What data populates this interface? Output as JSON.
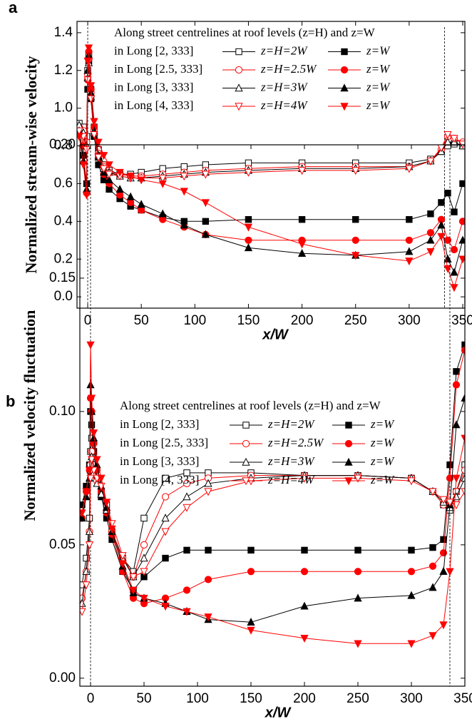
{
  "chart_data": [
    {
      "type": "line",
      "label": "a",
      "y_label": "Normalized stream-wise velocity",
      "x_label": "x/W",
      "legend_title": "Along street centrelines at roof levels (z=H) and z=W",
      "legend_groups": [
        "in Long [2, 333]",
        "in Long [2.5, 333]",
        "in Long [3, 333]",
        "in Long [4, 333]"
      ],
      "xlim": [
        -10,
        352
      ],
      "xticks": [
        0,
        50,
        100,
        150,
        200,
        250,
        300,
        350
      ],
      "ylim": [
        -0.06,
        1.46
      ],
      "yticks": [
        {
          "value": 0,
          "label": "0.0"
        },
        {
          "value": 0.2,
          "label": "0.2"
        },
        {
          "value": 0.4,
          "label": "0.4"
        },
        {
          "value": 0.6,
          "label": "0.6"
        },
        {
          "value": 0.8,
          "label": "0.8"
        },
        {
          "value": 1.0,
          "label": "1.0"
        },
        {
          "value": 1.2,
          "label": "1.2"
        },
        {
          "value": 1.4,
          "label": "1.4"
        }
      ],
      "reference_lines_x": [
        0,
        333
      ],
      "x": [
        -8,
        -4,
        -1,
        0,
        1,
        3,
        6,
        10,
        15,
        20,
        30,
        40,
        50,
        70,
        90,
        110,
        150,
        200,
        250,
        300,
        320,
        330,
        336,
        342,
        350
      ],
      "series": [
        {
          "name": "z=H=2W",
          "color": "#000000",
          "marker": "square",
          "filled": false,
          "values": [
            0.92,
            0.9,
            0.85,
            1.2,
            1.28,
            1.1,
            0.9,
            0.78,
            0.7,
            0.67,
            0.65,
            0.65,
            0.66,
            0.68,
            0.69,
            0.7,
            0.71,
            0.71,
            0.71,
            0.71,
            0.73,
            0.77,
            0.8,
            0.81,
            0.8
          ]
        },
        {
          "name": "z=W",
          "color": "#000000",
          "marker": "square",
          "filled": true,
          "values": [
            0.88,
            0.75,
            0.6,
            1.1,
            1.25,
            1.05,
            0.85,
            0.7,
            0.62,
            0.57,
            0.52,
            0.48,
            0.46,
            0.42,
            0.4,
            0.4,
            0.41,
            0.41,
            0.41,
            0.41,
            0.44,
            0.5,
            0.55,
            0.45,
            0.6
          ]
        },
        {
          "name": "z=H=2.5W",
          "color": "#ff0000",
          "marker": "circle",
          "filled": false,
          "values": [
            0.9,
            0.88,
            0.82,
            1.18,
            1.26,
            1.08,
            0.88,
            0.76,
            0.69,
            0.66,
            0.65,
            0.64,
            0.64,
            0.65,
            0.66,
            0.67,
            0.68,
            0.69,
            0.69,
            0.69,
            0.72,
            0.78,
            0.85,
            0.84,
            0.82
          ]
        },
        {
          "name": "z=W",
          "color": "#ff0000",
          "marker": "circle",
          "filled": true,
          "values": [
            0.9,
            0.8,
            0.55,
            1.15,
            1.3,
            1.1,
            0.9,
            0.75,
            0.65,
            0.6,
            0.54,
            0.5,
            0.46,
            0.41,
            0.37,
            0.33,
            0.3,
            0.3,
            0.3,
            0.3,
            0.34,
            0.41,
            0.3,
            0.25,
            0.4
          ]
        },
        {
          "name": "z=H=3W",
          "color": "#000000",
          "marker": "triangle",
          "filled": false,
          "values": [
            0.91,
            0.87,
            0.8,
            1.16,
            1.24,
            1.06,
            0.87,
            0.75,
            0.68,
            0.66,
            0.64,
            0.63,
            0.63,
            0.64,
            0.65,
            0.66,
            0.67,
            0.68,
            0.68,
            0.69,
            0.72,
            0.77,
            0.82,
            0.82,
            0.8
          ]
        },
        {
          "name": "z=W",
          "color": "#000000",
          "marker": "triangle",
          "filled": true,
          "values": [
            0.88,
            0.72,
            0.57,
            1.2,
            1.28,
            1.08,
            0.88,
            0.74,
            0.66,
            0.62,
            0.57,
            0.53,
            0.49,
            0.44,
            0.38,
            0.33,
            0.26,
            0.23,
            0.22,
            0.24,
            0.3,
            0.38,
            0.2,
            0.13,
            0.3
          ]
        },
        {
          "name": "z=H=4W",
          "color": "#ff0000",
          "marker": "triangle-down",
          "filled": false,
          "values": [
            0.88,
            0.85,
            0.78,
            1.15,
            1.25,
            1.05,
            0.86,
            0.74,
            0.68,
            0.65,
            0.64,
            0.63,
            0.63,
            0.63,
            0.64,
            0.65,
            0.66,
            0.67,
            0.67,
            0.68,
            0.72,
            0.79,
            0.86,
            0.84,
            0.81
          ]
        },
        {
          "name": "z=W",
          "color": "#ff0000",
          "marker": "triangle-down",
          "filled": true,
          "values": [
            0.85,
            0.7,
            0.54,
            1.25,
            1.32,
            1.12,
            0.93,
            0.82,
            0.75,
            0.7,
            0.66,
            0.64,
            0.62,
            0.6,
            0.56,
            0.5,
            0.37,
            0.28,
            0.22,
            0.19,
            0.24,
            0.32,
            0.15,
            0.05,
            0.2
          ]
        }
      ]
    },
    {
      "type": "line",
      "label": "b",
      "y_label": "Normalized velocity fluctuation",
      "x_label": "x/W",
      "legend_title": "Along street centrelines at roof levels (z=H) and z=W",
      "legend_groups": [
        "in Long [2, 333]",
        "in Long [2.5, 333]",
        "in Long [3, 333]",
        "in Long [4, 333]"
      ],
      "xlim": [
        -10,
        350
      ],
      "xticks": [
        0,
        50,
        100,
        150,
        200,
        250,
        300,
        350
      ],
      "ylim": [
        -0.003,
        0.2
      ],
      "yticks": [
        {
          "value": 0,
          "label": "0.00"
        },
        {
          "value": 0.05,
          "label": "0.05"
        },
        {
          "value": 0.1,
          "label": "0.10"
        },
        {
          "value": 0.15,
          "label": "0.15"
        },
        {
          "value": 0.2,
          "label": "0.20"
        }
      ],
      "reference_lines_x": [
        0,
        336
      ],
      "x": [
        -8,
        -4,
        -1,
        0,
        1,
        3,
        6,
        10,
        15,
        20,
        30,
        40,
        50,
        70,
        90,
        110,
        150,
        200,
        250,
        300,
        320,
        330,
        336,
        342,
        350
      ],
      "series": [
        {
          "name": "z=H=2W",
          "color": "#000000",
          "marker": "square",
          "filled": false,
          "values": [
            0.035,
            0.045,
            0.06,
            0.085,
            0.09,
            0.08,
            0.075,
            0.07,
            0.065,
            0.055,
            0.045,
            0.04,
            0.06,
            0.075,
            0.077,
            0.077,
            0.077,
            0.076,
            0.076,
            0.075,
            0.07,
            0.065,
            0.063,
            0.07,
            0.08
          ]
        },
        {
          "name": "z=W",
          "color": "#000000",
          "marker": "square",
          "filled": true,
          "values": [
            0.065,
            0.072,
            0.08,
            0.1,
            0.095,
            0.085,
            0.075,
            0.068,
            0.06,
            0.052,
            0.04,
            0.033,
            0.038,
            0.045,
            0.048,
            0.048,
            0.048,
            0.048,
            0.048,
            0.048,
            0.049,
            0.052,
            0.08,
            0.115,
            0.125
          ]
        },
        {
          "name": "z=H=2.5W",
          "color": "#ff0000",
          "marker": "circle",
          "filled": false,
          "values": [
            0.03,
            0.04,
            0.055,
            0.08,
            0.085,
            0.078,
            0.074,
            0.07,
            0.063,
            0.055,
            0.045,
            0.038,
            0.05,
            0.068,
            0.073,
            0.075,
            0.076,
            0.076,
            0.076,
            0.075,
            0.07,
            0.065,
            0.065,
            0.07,
            0.078
          ]
        },
        {
          "name": "z=W",
          "color": "#ff0000",
          "marker": "circle",
          "filled": true,
          "values": [
            0.06,
            0.07,
            0.078,
            0.105,
            0.1,
            0.088,
            0.078,
            0.07,
            0.062,
            0.054,
            0.04,
            0.03,
            0.028,
            0.03,
            0.033,
            0.037,
            0.04,
            0.04,
            0.04,
            0.04,
            0.042,
            0.047,
            0.075,
            0.11,
            0.123
          ]
        },
        {
          "name": "z=H=3W",
          "color": "#000000",
          "marker": "triangle",
          "filled": false,
          "values": [
            0.028,
            0.04,
            0.055,
            0.078,
            0.083,
            0.077,
            0.073,
            0.069,
            0.063,
            0.055,
            0.045,
            0.038,
            0.045,
            0.06,
            0.068,
            0.073,
            0.075,
            0.076,
            0.076,
            0.075,
            0.07,
            0.066,
            0.064,
            0.068,
            0.075
          ]
        },
        {
          "name": "z=W",
          "color": "#000000",
          "marker": "triangle",
          "filled": true,
          "values": [
            0.06,
            0.068,
            0.075,
            0.11,
            0.1,
            0.09,
            0.08,
            0.072,
            0.064,
            0.055,
            0.042,
            0.032,
            0.03,
            0.028,
            0.025,
            0.022,
            0.021,
            0.027,
            0.03,
            0.031,
            0.034,
            0.04,
            0.065,
            0.095,
            0.105
          ]
        },
        {
          "name": "z=H=4W",
          "color": "#ff0000",
          "marker": "triangle-down",
          "filled": false,
          "values": [
            0.025,
            0.035,
            0.05,
            0.075,
            0.082,
            0.078,
            0.075,
            0.072,
            0.066,
            0.058,
            0.046,
            0.038,
            0.04,
            0.055,
            0.064,
            0.07,
            0.074,
            0.075,
            0.075,
            0.074,
            0.07,
            0.067,
            0.066,
            0.065,
            0.07
          ]
        },
        {
          "name": "z=W",
          "color": "#ff0000",
          "marker": "triangle-down",
          "filled": true,
          "values": [
            0.062,
            0.07,
            0.078,
            0.125,
            0.105,
            0.092,
            0.082,
            0.075,
            0.066,
            0.056,
            0.043,
            0.033,
            0.03,
            0.027,
            0.025,
            0.023,
            0.018,
            0.015,
            0.013,
            0.013,
            0.016,
            0.02,
            0.04,
            0.075,
            0.09
          ]
        }
      ]
    }
  ]
}
